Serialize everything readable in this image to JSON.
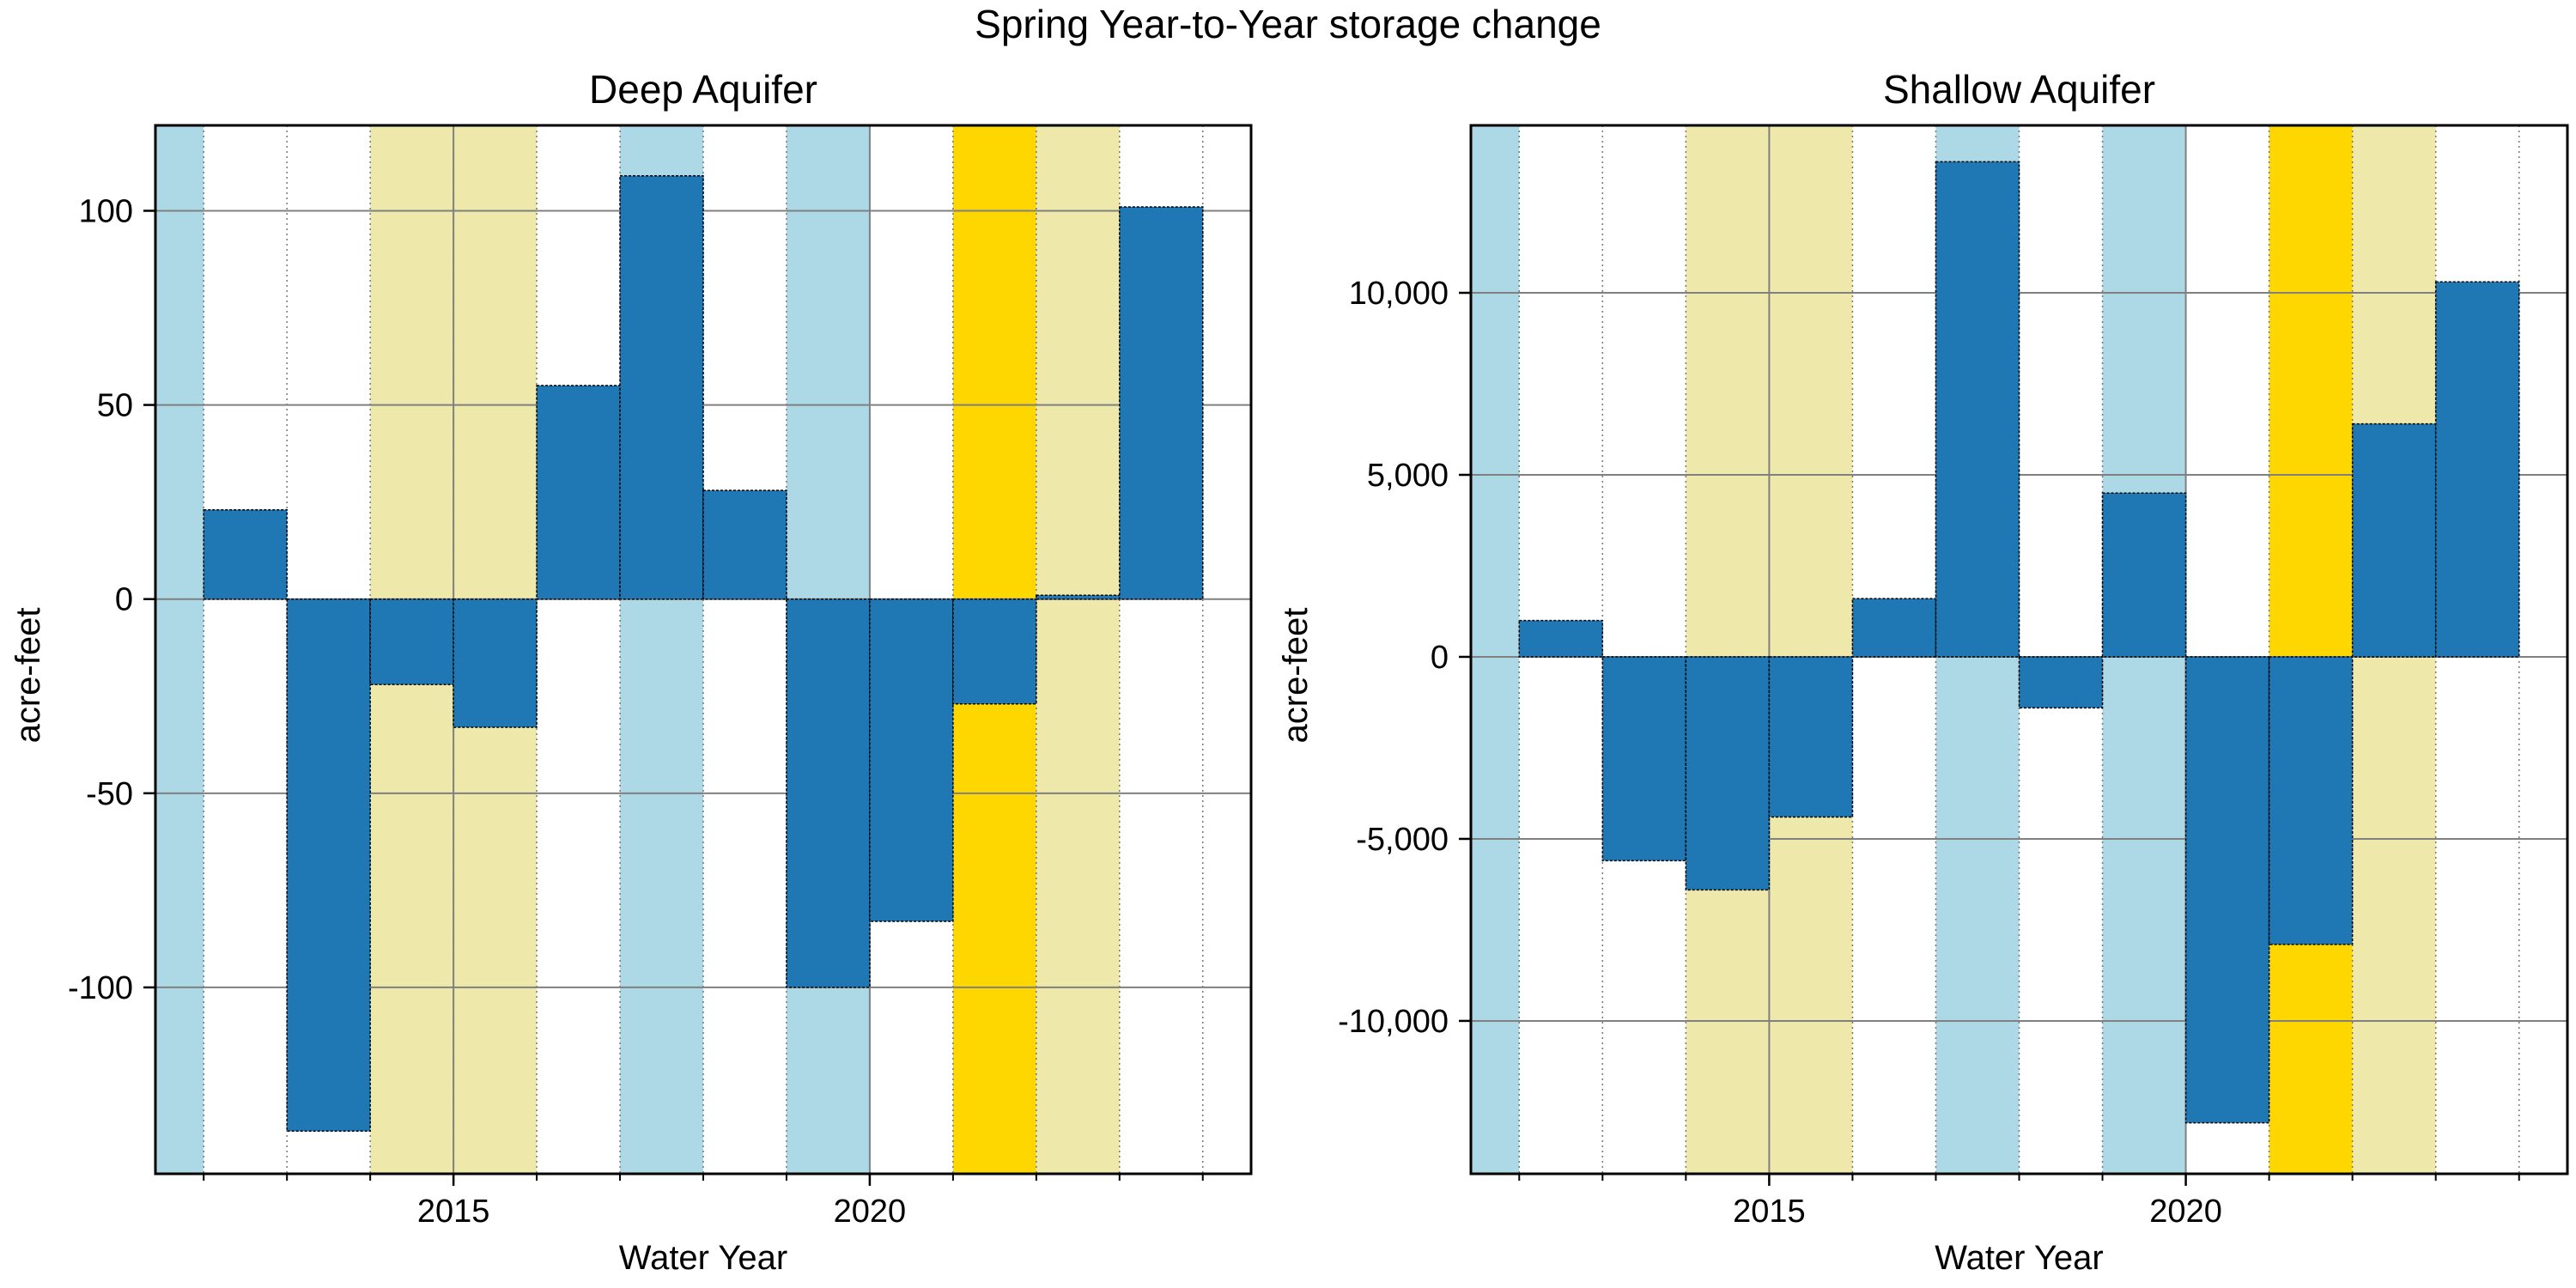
{
  "title": "Spring Year-to-Year storage change",
  "colors": {
    "bar": "#1f77b4",
    "wet": "#add8e6",
    "dry": "#eee8aa",
    "critical": "#ffd700",
    "grid": "#808080"
  },
  "chart_data": [
    {
      "type": "bar",
      "title": "Deep Aquifer",
      "xlabel": "Water Year",
      "ylabel": "acre-feet",
      "xlim": [
        2011.42,
        2024.58
      ],
      "ylim": [
        -148,
        122
      ],
      "x_ticks": [
        2015,
        2020
      ],
      "y_ticks": [
        {
          "value": 100,
          "label": "100"
        },
        {
          "value": 50,
          "label": "50"
        },
        {
          "value": 0,
          "label": "0"
        },
        {
          "value": -50,
          "label": "-50"
        },
        {
          "value": -100,
          "label": "-100"
        }
      ],
      "grid": true,
      "years": [
        2012,
        2013,
        2014,
        2015,
        2016,
        2017,
        2018,
        2019,
        2020,
        2021,
        2022,
        2023
      ],
      "values": [
        23,
        -137,
        -22,
        -33,
        55,
        109,
        28,
        -100,
        -83,
        -27,
        1,
        101
      ],
      "year_types": [
        {
          "year": 2011,
          "type": "wet"
        },
        {
          "year": 2014,
          "type": "dry"
        },
        {
          "year": 2015,
          "type": "dry"
        },
        {
          "year": 2017,
          "type": "wet"
        },
        {
          "year": 2019,
          "type": "wet"
        },
        {
          "year": 2021,
          "type": "critical"
        },
        {
          "year": 2022,
          "type": "dry"
        }
      ]
    },
    {
      "type": "bar",
      "title": "Shallow  Aquifer",
      "xlabel": "Water Year",
      "ylabel": "acre-feet",
      "xlim": [
        2011.42,
        2024.58
      ],
      "ylim": [
        -14200,
        14600
      ],
      "x_ticks": [
        2015,
        2020
      ],
      "y_ticks": [
        {
          "value": 10000,
          "label": "10,000"
        },
        {
          "value": 5000,
          "label": "5,000"
        },
        {
          "value": 0,
          "label": "0"
        },
        {
          "value": -5000,
          "label": "-5,000"
        },
        {
          "value": -10000,
          "label": "-10,000"
        }
      ],
      "grid": true,
      "years": [
        2012,
        2013,
        2014,
        2015,
        2016,
        2017,
        2018,
        2019,
        2020,
        2021,
        2022,
        2023
      ],
      "values": [
        1000,
        -5600,
        -6400,
        -4400,
        1600,
        13600,
        -1400,
        4500,
        -12800,
        -7900,
        6400,
        10300
      ],
      "year_types": [
        {
          "year": 2011,
          "type": "wet"
        },
        {
          "year": 2014,
          "type": "dry"
        },
        {
          "year": 2015,
          "type": "dry"
        },
        {
          "year": 2017,
          "type": "wet"
        },
        {
          "year": 2019,
          "type": "wet"
        },
        {
          "year": 2021,
          "type": "critical"
        },
        {
          "year": 2022,
          "type": "dry"
        }
      ]
    }
  ]
}
